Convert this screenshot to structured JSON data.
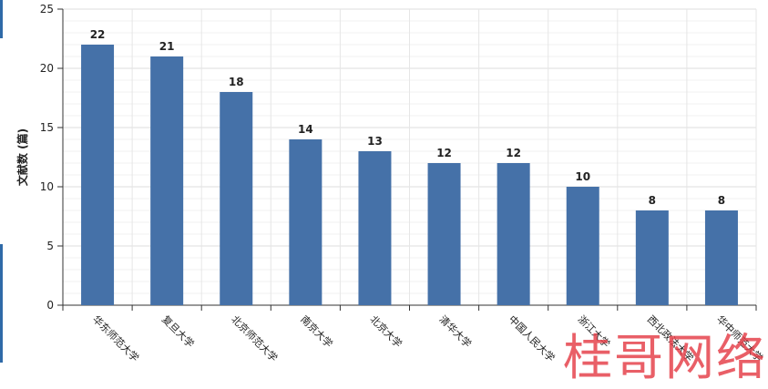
{
  "chart_data": {
    "type": "bar",
    "title": "",
    "xlabel": "",
    "ylabel": "文献数 (篇)",
    "categories": [
      "华东师范大学",
      "复旦大学",
      "北京师范大学",
      "南京大学",
      "北京大学",
      "清华大学",
      "中国人民大学",
      "浙江大学",
      "西北政法大学",
      "华中师范大学"
    ],
    "values": [
      22,
      21,
      18,
      14,
      13,
      12,
      12,
      10,
      8,
      8
    ],
    "ylim": [
      0,
      25
    ],
    "yticks": [
      0,
      5,
      10,
      15,
      20,
      25
    ],
    "grid": true,
    "bar_color": "#4571a8",
    "data_labels": true
  },
  "watermark": {
    "text": "桂哥网络"
  }
}
